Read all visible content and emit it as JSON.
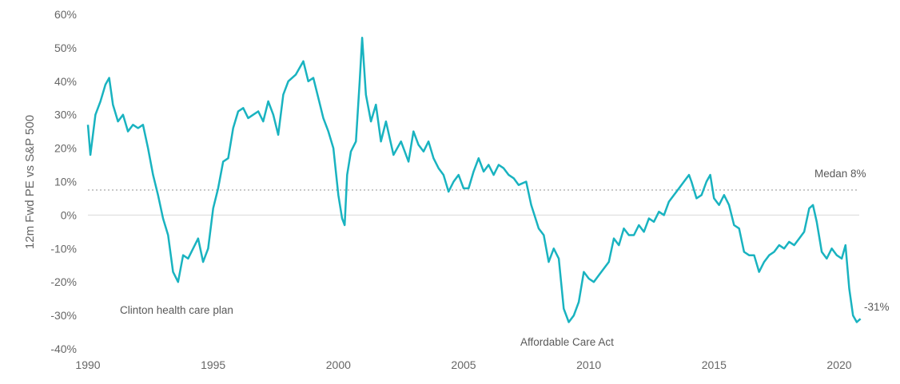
{
  "chart_data": {
    "type": "line",
    "title": "",
    "xlabel": "",
    "ylabel": "12m Fwd PE vs S&P 500",
    "xlim": [
      1990,
      2021
    ],
    "ylim": [
      -40,
      60
    ],
    "x_ticks": [
      1990,
      1995,
      2000,
      2005,
      2010,
      2015,
      2020
    ],
    "x_tick_labels": [
      "1990",
      "1995",
      "2000",
      "2005",
      "2010",
      "2015",
      "2020"
    ],
    "y_ticks": [
      -40,
      -30,
      -20,
      -10,
      0,
      10,
      20,
      30,
      40,
      50,
      60
    ],
    "y_tick_labels": [
      "-40%",
      "-30%",
      "-20%",
      "-10%",
      "0%",
      "10%",
      "20%",
      "30%",
      "40%",
      "50%",
      "60%"
    ],
    "grid": false,
    "legend": "none",
    "colors": {
      "series": "#19b3c0",
      "median": "#c8c8c8",
      "axis": "#d9d9d9",
      "text": "#666666"
    },
    "series": [
      {
        "values": [
          [
            1990.0,
            27
          ],
          [
            1990.1,
            18
          ],
          [
            1990.3,
            30
          ],
          [
            1990.5,
            34
          ],
          [
            1990.7,
            39
          ],
          [
            1990.85,
            41
          ],
          [
            1991.0,
            33
          ],
          [
            1991.2,
            28
          ],
          [
            1991.4,
            30
          ],
          [
            1991.6,
            25
          ],
          [
            1991.8,
            27
          ],
          [
            1992.0,
            26
          ],
          [
            1992.2,
            27
          ],
          [
            1992.4,
            20
          ],
          [
            1992.6,
            12
          ],
          [
            1992.8,
            6
          ],
          [
            1993.0,
            -1
          ],
          [
            1993.2,
            -6
          ],
          [
            1993.4,
            -17
          ],
          [
            1993.6,
            -20
          ],
          [
            1993.8,
            -12
          ],
          [
            1994.0,
            -13
          ],
          [
            1994.2,
            -10
          ],
          [
            1994.4,
            -7
          ],
          [
            1994.6,
            -14
          ],
          [
            1994.8,
            -10
          ],
          [
            1995.0,
            2
          ],
          [
            1995.2,
            8
          ],
          [
            1995.4,
            16
          ],
          [
            1995.6,
            17
          ],
          [
            1995.8,
            26
          ],
          [
            1996.0,
            31
          ],
          [
            1996.2,
            32
          ],
          [
            1996.4,
            29
          ],
          [
            1996.6,
            30
          ],
          [
            1996.8,
            31
          ],
          [
            1997.0,
            28
          ],
          [
            1997.2,
            34
          ],
          [
            1997.4,
            30
          ],
          [
            1997.6,
            24
          ],
          [
            1997.8,
            36
          ],
          [
            1998.0,
            40
          ],
          [
            1998.3,
            42
          ],
          [
            1998.6,
            46
          ],
          [
            1998.8,
            40
          ],
          [
            1999.0,
            41
          ],
          [
            1999.2,
            35
          ],
          [
            1999.4,
            29
          ],
          [
            1999.6,
            25
          ],
          [
            1999.8,
            20
          ],
          [
            2000.0,
            6
          ],
          [
            2000.15,
            -1
          ],
          [
            2000.25,
            -3
          ],
          [
            2000.35,
            12
          ],
          [
            2000.5,
            19
          ],
          [
            2000.7,
            22
          ],
          [
            2000.85,
            40
          ],
          [
            2000.95,
            53
          ],
          [
            2001.1,
            36
          ],
          [
            2001.3,
            28
          ],
          [
            2001.5,
            33
          ],
          [
            2001.7,
            22
          ],
          [
            2001.9,
            28
          ],
          [
            2002.2,
            18
          ],
          [
            2002.5,
            22
          ],
          [
            2002.8,
            16
          ],
          [
            2003.0,
            25
          ],
          [
            2003.2,
            21
          ],
          [
            2003.4,
            19
          ],
          [
            2003.6,
            22
          ],
          [
            2003.8,
            17
          ],
          [
            2004.0,
            14
          ],
          [
            2004.2,
            12
          ],
          [
            2004.4,
            7
          ],
          [
            2004.6,
            10
          ],
          [
            2004.8,
            12
          ],
          [
            2005.0,
            8
          ],
          [
            2005.2,
            8
          ],
          [
            2005.4,
            13
          ],
          [
            2005.6,
            17
          ],
          [
            2005.8,
            13
          ],
          [
            2006.0,
            15
          ],
          [
            2006.2,
            12
          ],
          [
            2006.4,
            15
          ],
          [
            2006.6,
            14
          ],
          [
            2006.8,
            12
          ],
          [
            2007.0,
            11
          ],
          [
            2007.2,
            9
          ],
          [
            2007.5,
            10
          ],
          [
            2007.7,
            3
          ],
          [
            2008.0,
            -4
          ],
          [
            2008.2,
            -6
          ],
          [
            2008.4,
            -14
          ],
          [
            2008.6,
            -10
          ],
          [
            2008.8,
            -13
          ],
          [
            2009.0,
            -28
          ],
          [
            2009.2,
            -32
          ],
          [
            2009.4,
            -30
          ],
          [
            2009.6,
            -26
          ],
          [
            2009.8,
            -17
          ],
          [
            2010.0,
            -19
          ],
          [
            2010.2,
            -20
          ],
          [
            2010.4,
            -18
          ],
          [
            2010.6,
            -16
          ],
          [
            2010.8,
            -14
          ],
          [
            2011.0,
            -7
          ],
          [
            2011.2,
            -9
          ],
          [
            2011.4,
            -4
          ],
          [
            2011.6,
            -6
          ],
          [
            2011.8,
            -6
          ],
          [
            2012.0,
            -3
          ],
          [
            2012.2,
            -5
          ],
          [
            2012.4,
            -1
          ],
          [
            2012.6,
            -2
          ],
          [
            2012.8,
            1
          ],
          [
            2013.0,
            0
          ],
          [
            2013.2,
            4
          ],
          [
            2013.4,
            6
          ],
          [
            2013.6,
            8
          ],
          [
            2013.8,
            10
          ],
          [
            2014.0,
            12
          ],
          [
            2014.1,
            10
          ],
          [
            2014.3,
            5
          ],
          [
            2014.5,
            6
          ],
          [
            2014.7,
            10
          ],
          [
            2014.85,
            12
          ],
          [
            2015.0,
            5
          ],
          [
            2015.2,
            3
          ],
          [
            2015.4,
            6
          ],
          [
            2015.6,
            3
          ],
          [
            2015.8,
            -3
          ],
          [
            2016.0,
            -4
          ],
          [
            2016.2,
            -11
          ],
          [
            2016.4,
            -12
          ],
          [
            2016.6,
            -12
          ],
          [
            2016.8,
            -17
          ],
          [
            2017.0,
            -14
          ],
          [
            2017.2,
            -12
          ],
          [
            2017.4,
            -11
          ],
          [
            2017.6,
            -9
          ],
          [
            2017.8,
            -10
          ],
          [
            2018.0,
            -8
          ],
          [
            2018.2,
            -9
          ],
          [
            2018.4,
            -7
          ],
          [
            2018.6,
            -5
          ],
          [
            2018.8,
            2
          ],
          [
            2018.95,
            3
          ],
          [
            2019.1,
            -2
          ],
          [
            2019.3,
            -11
          ],
          [
            2019.5,
            -13
          ],
          [
            2019.7,
            -10
          ],
          [
            2019.9,
            -12
          ],
          [
            2020.1,
            -13
          ],
          [
            2020.25,
            -9
          ],
          [
            2020.4,
            -22
          ],
          [
            2020.55,
            -30
          ],
          [
            2020.7,
            -32
          ],
          [
            2020.85,
            -31
          ]
        ]
      }
    ],
    "reference_lines": [
      {
        "y": 7.5,
        "label": "Medan 8%"
      }
    ],
    "annotations": {
      "clinton": "Clinton health care plan",
      "aca": "Affordable Care Act",
      "median": "Medan 8%",
      "last_value": "-31%"
    }
  }
}
